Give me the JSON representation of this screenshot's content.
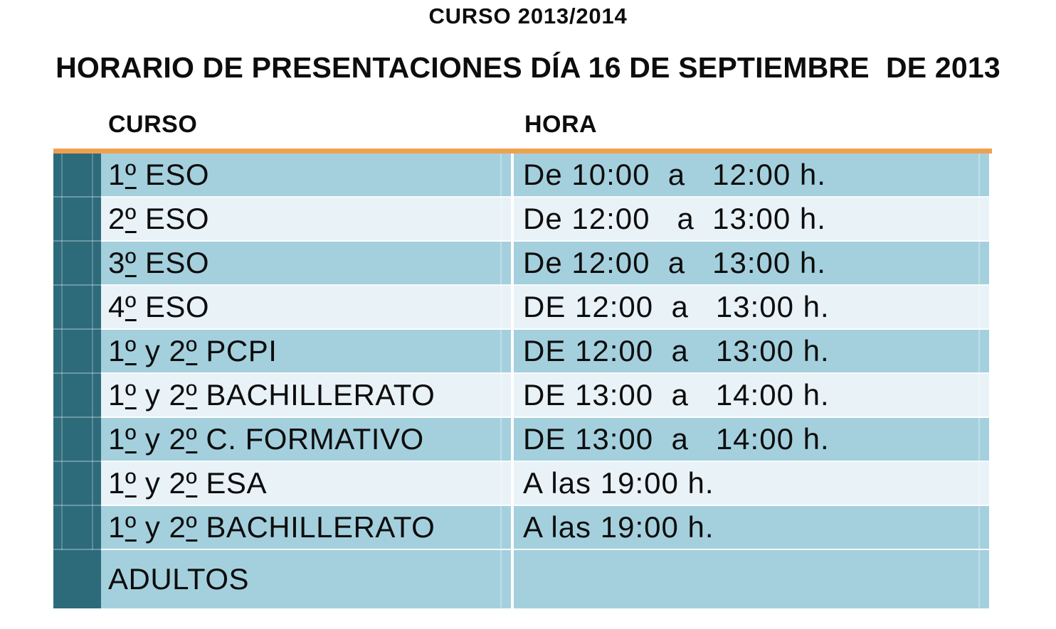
{
  "page": {
    "kicker": "CURSO 2013/2014",
    "title": "HORARIO DE PRESENTACIONES DÍA 16 DE SEPTIEMBRE  DE 2013"
  },
  "table": {
    "columns": {
      "curso": "CURSO",
      "hora": "HORA"
    },
    "rows": [
      {
        "curso": "1º ESO",
        "hora": "De 10:00  a   12:00 h."
      },
      {
        "curso": "2º ESO",
        "hora": "De 12:00   a  13:00 h."
      },
      {
        "curso": "3º ESO",
        "hora": "De 12:00  a   13:00 h."
      },
      {
        "curso": "4º ESO",
        "hora": "DE 12:00  a   13:00 h."
      },
      {
        "curso": "1º y 2º PCPI",
        "hora": "DE 12:00  a   13:00 h."
      },
      {
        "curso": "1º y 2º BACHILLERATO",
        "hora": "DE 13:00  a   14:00 h."
      },
      {
        "curso": "1º y 2º C. FORMATIVO",
        "hora": "DE 13:00  a   14:00 h."
      },
      {
        "curso": "1º y 2º ESA",
        "hora": "A las 19:00 h."
      },
      {
        "curso": "1º y 2º BACHILLERATO",
        "hora": "A las 19:00 h."
      },
      {
        "curso": "ADULTOS",
        "hora": ""
      }
    ],
    "colors": {
      "accent_orange": "#efa04f",
      "strip_teal": "#2d6b7b",
      "row_blue": "#a4d0de",
      "row_pale": "#e8f2f7",
      "text": "#0d0d0d"
    }
  }
}
